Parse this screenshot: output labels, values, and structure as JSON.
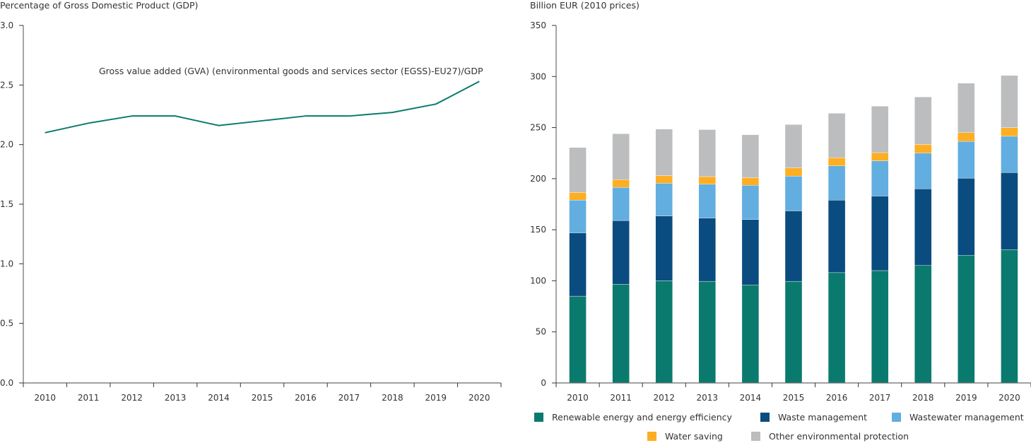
{
  "chart_data": [
    {
      "type": "line",
      "title": "",
      "ylabel": "Percentage of Gross Domestic Product (GDP)",
      "xlabel": "",
      "ylim": [
        0,
        3.0
      ],
      "yticks": [
        "0.0",
        "0.5",
        "1.0",
        "1.5",
        "2.0",
        "2.5",
        "3.0"
      ],
      "ytick_values": [
        0,
        0.5,
        1.0,
        1.5,
        2.0,
        2.5,
        3.0
      ],
      "categories": [
        "2010",
        "2011",
        "2012",
        "2013",
        "2014",
        "2015",
        "2016",
        "2017",
        "2018",
        "2019",
        "2020"
      ],
      "grid": false,
      "series": [
        {
          "name": "Gross value added (GVA) (environmental goods and services sector (EGSS)-EU27)/GDP",
          "color": "#0b7a6e",
          "values": [
            2.1,
            2.18,
            2.24,
            2.24,
            2.16,
            2.2,
            2.24,
            2.24,
            2.27,
            2.34,
            2.53
          ]
        }
      ],
      "annotation": "Gross value added (GVA) (environmental goods and services sector (EGSS)-EU27)/GDP"
    },
    {
      "type": "bar",
      "stacked": true,
      "title": "",
      "ylabel": "Billion EUR (2010 prices)",
      "xlabel": "",
      "ylim": [
        0,
        350
      ],
      "yticks": [
        "0",
        "50",
        "100",
        "150",
        "200",
        "250",
        "300",
        "350"
      ],
      "ytick_values": [
        0,
        50,
        100,
        150,
        200,
        250,
        300,
        350
      ],
      "categories": [
        "2010",
        "2011",
        "2012",
        "2013",
        "2014",
        "2015",
        "2016",
        "2017",
        "2018",
        "2019",
        "2020"
      ],
      "grid": false,
      "legend_position": "bottom",
      "series": [
        {
          "name": "Renewable energy and energy efficiency",
          "color": "#0b7a6e",
          "values": [
            85,
            96.5,
            100,
            99.5,
            96,
            99.5,
            108,
            110,
            115,
            125,
            130.5
          ]
        },
        {
          "name": "Waste management",
          "color": "#0a4c80",
          "values": [
            62,
            62.5,
            63.5,
            62,
            64,
            69,
            71,
            73,
            75,
            75.5,
            75.5
          ]
        },
        {
          "name": "Wastewater management",
          "color": "#62aee0",
          "values": [
            32,
            32.5,
            32,
            33,
            33.5,
            34,
            33.5,
            34.5,
            35,
            36,
            35.5
          ]
        },
        {
          "name": "Water saving",
          "color": "#fdae22",
          "values": [
            7.5,
            7.5,
            7.5,
            7.5,
            7.5,
            8,
            8,
            8,
            8.5,
            8.5,
            8.5
          ]
        },
        {
          "name": "Other environmental protection",
          "color": "#bcbdbf",
          "values": [
            44,
            45,
            45.5,
            46,
            42,
            42.5,
            43.5,
            45.5,
            46.5,
            48.5,
            51
          ]
        }
      ]
    }
  ]
}
